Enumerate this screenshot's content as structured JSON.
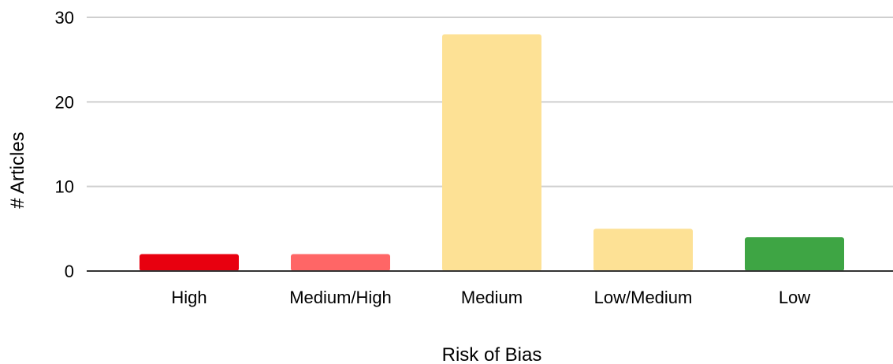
{
  "chart_data": {
    "type": "bar",
    "title": "",
    "xlabel": "Risk of Bias",
    "ylabel": "# Articles",
    "categories": [
      "High",
      "Medium/High",
      "Medium",
      "Low/Medium",
      "Low"
    ],
    "values": [
      2,
      2,
      28,
      5,
      4
    ],
    "colors": [
      "#e8000f",
      "#ff6666",
      "#fde195",
      "#fde195",
      "#3ea544"
    ],
    "ylim": [
      0,
      30
    ],
    "yticks": [
      0,
      10,
      20,
      30
    ],
    "grid": true,
    "legend": "none"
  }
}
